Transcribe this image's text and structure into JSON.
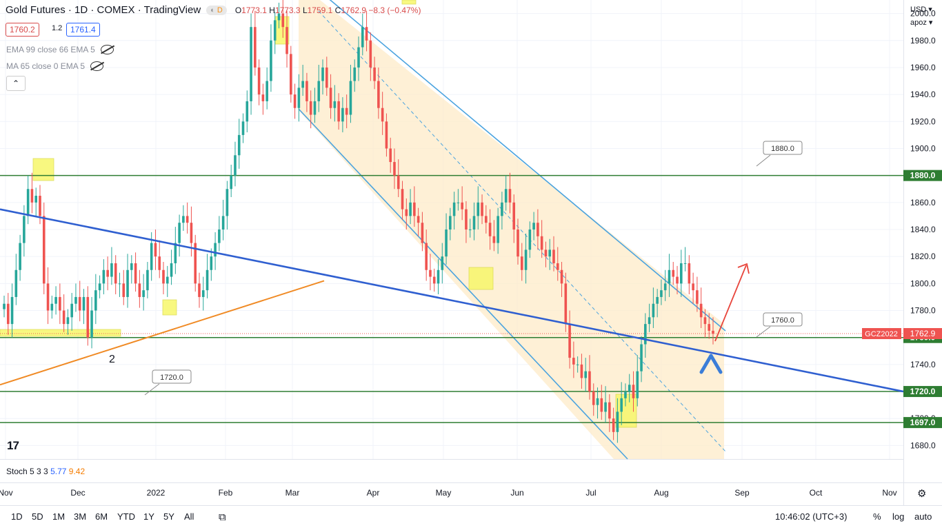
{
  "header": {
    "symbol_title": "Gold Futures · 1D · COMEX · TradingView",
    "badge_letter": "D",
    "ohlc": {
      "o_label": "O",
      "o": "1773.1",
      "h_label": "H",
      "h": "1773.3",
      "l_label": "L",
      "l": "1759.1",
      "c_label": "C",
      "c": "1762.9",
      "change": "−8.3 (−0.47%)"
    },
    "bid": "1760.2",
    "spread": "1.2",
    "ask": "1761.4"
  },
  "indicators": {
    "ema": "EMA 99 close 66 EMA 5",
    "ma": "MA 65 close 0 EMA 5",
    "stoch_label": "Stoch 5 3 3",
    "stoch_k": "5.77",
    "stoch_d": "9.42"
  },
  "axis_top": {
    "currency": "USD",
    "mode": "apoz"
  },
  "bottom": {
    "timeframes": [
      "1D",
      "5D",
      "1M",
      "3M",
      "6M",
      "YTD",
      "1Y",
      "5Y",
      "All"
    ],
    "time": "10:46:02 (UTC+3)",
    "pct": "%",
    "log": "log",
    "auto": "auto"
  },
  "colors": {
    "up": "#26a69a",
    "down": "#ef5350",
    "channel": "#4aa3df",
    "channel_fill": "#fdebc8",
    "trend_blue": "#2f5fd0",
    "trend_orange": "#f08a24",
    "level": "#2e7d32",
    "highlight": "#f7f76b",
    "arrow_red": "#e8453c",
    "arrow_blue": "#3b7dd8"
  },
  "chart_data": {
    "type": "candlestick",
    "title": "Gold Futures · 1D · COMEX",
    "y_range": [
      1670,
      2010
    ],
    "y_ticks": [
      1680.0,
      1700.0,
      1720.0,
      1740.0,
      1760.0,
      1780.0,
      1800.0,
      1820.0,
      1840.0,
      1860.0,
      1880.0,
      1900.0,
      1920.0,
      1940.0,
      1960.0,
      1980.0,
      2000.0
    ],
    "x_labels": [
      "Nov",
      "Dec",
      "2022",
      "Feb",
      "Mar",
      "Apr",
      "May",
      "Jun",
      "Jul",
      "Aug",
      "Sep",
      "Oct",
      "Nov"
    ],
    "last_price": {
      "ticker": "GCZ2022",
      "value": 1762.9
    },
    "horizontal_levels": [
      1880.0,
      1760.0,
      1720.0,
      1697.0
    ],
    "level_labels": [
      "1880.0",
      "1760.0",
      "1720.0",
      "1697.0"
    ],
    "callouts": [
      "1880.0",
      "1760.0",
      "1720.0"
    ],
    "annotation_text": "2",
    "closes": [
      1785,
      1770,
      1790,
      1810,
      1830,
      1850,
      1870,
      1860,
      1865,
      1850,
      1800,
      1780,
      1785,
      1790,
      1780,
      1770,
      1775,
      1785,
      1790,
      1780,
      1790,
      1760,
      1780,
      1795,
      1800,
      1810,
      1805,
      1815,
      1800,
      1800,
      1790,
      1810,
      1815,
      1800,
      1790,
      1795,
      1810,
      1830,
      1820,
      1810,
      1800,
      1805,
      1815,
      1830,
      1845,
      1850,
      1845,
      1830,
      1800,
      1790,
      1795,
      1810,
      1820,
      1830,
      1840,
      1850,
      1870,
      1880,
      1895,
      1910,
      1920,
      1935,
      1990,
      1960,
      1940,
      1935,
      1950,
      1980,
      1995,
      2000,
      1990,
      1970,
      1940,
      1930,
      1945,
      1950,
      1935,
      1925,
      1935,
      1950,
      1960,
      1945,
      1930,
      1935,
      1920,
      1930,
      1925,
      1950,
      1960,
      1975,
      1990,
      1980,
      1960,
      1950,
      1930,
      1920,
      1900,
      1890,
      1880,
      1870,
      1855,
      1850,
      1860,
      1850,
      1845,
      1830,
      1810,
      1805,
      1800,
      1810,
      1820,
      1840,
      1850,
      1860,
      1860,
      1855,
      1840,
      1840,
      1850,
      1860,
      1850,
      1845,
      1835,
      1830,
      1850,
      1860,
      1870,
      1860,
      1840,
      1820,
      1810,
      1825,
      1840,
      1845,
      1835,
      1825,
      1820,
      1825,
      1815,
      1810,
      1800,
      1770,
      1745,
      1740,
      1740,
      1730,
      1735,
      1720,
      1710,
      1715,
      1705,
      1712,
      1700,
      1690,
      1705,
      1715,
      1720,
      1725,
      1715,
      1735,
      1755,
      1770,
      1775,
      1785,
      1790,
      1795,
      1800,
      1810,
      1805,
      1800,
      1815,
      1815,
      1800,
      1795,
      1785,
      1775,
      1770,
      1765,
      1762.9
    ]
  }
}
